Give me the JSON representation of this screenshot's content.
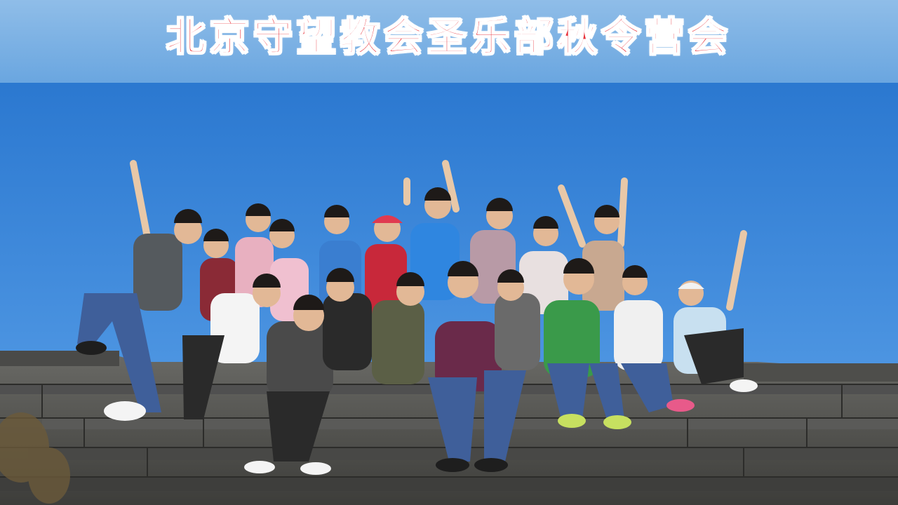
{
  "banner": {
    "title": "北京守望教会圣乐部秋令营会"
  },
  "photo": {
    "subject": "group-photo-on-great-wall",
    "colors": {
      "sky": "#2f7fd6",
      "sky_light": "#5a9de6",
      "stone": "#5c5c5c",
      "stone_dark": "#3a3a3a",
      "title_red": "#e8323a"
    }
  }
}
